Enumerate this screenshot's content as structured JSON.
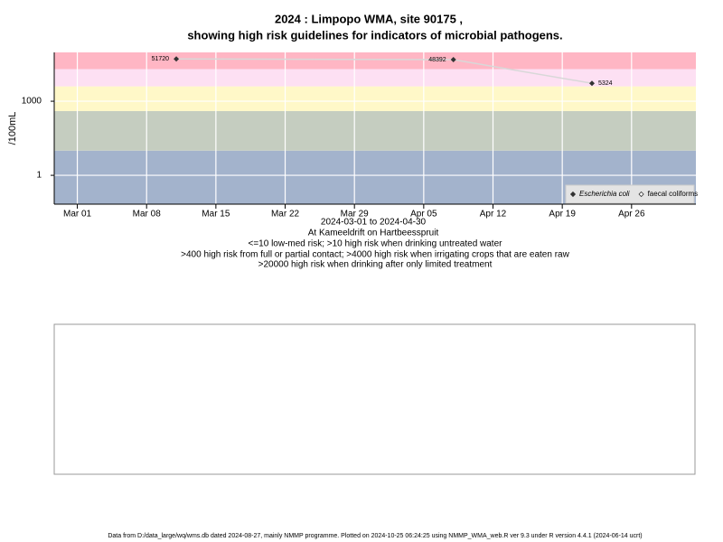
{
  "chart_data": {
    "type": "line",
    "title_lines": [
      "2024 : Limpopo WMA, site 90175 ,",
      "showing high risk guidelines for indicators of microbial pathogens."
    ],
    "y_label": "/100mL",
    "x_label": "2024-03-01 to 2024-04-30",
    "notes": [
      "At Kameeldrift on Hartbeesspruit",
      "<=10 low-med risk; >10 high risk when drinking untreated water",
      ">400 high risk from full or partial contact; >4000 high risk when irrigating crops that are eaten raw",
      ">20000 high risk when drinking after only limited treatment"
    ],
    "x": [
      "2024-03-11",
      "2024-04-08",
      "2024-04-22"
    ],
    "series": [
      {
        "name": "Escherichia coli",
        "color": "#333333",
        "line_color": "#d8d8d8",
        "values": [
          51720,
          48392,
          5324
        ]
      },
      {
        "name": "faecal coliforms",
        "color": "#333333",
        "line_color": "#d8d8d8",
        "values": [
          null,
          null,
          null
        ]
      }
    ],
    "xlim": [
      "2024-02-27T16:00",
      "2024-05-02T12:00"
    ],
    "xticks": [
      {
        "value": "2024-03-01",
        "label": "Mar 01"
      },
      {
        "value": "2024-03-08",
        "label": "Mar 08"
      },
      {
        "value": "2024-03-15",
        "label": "Mar 15"
      },
      {
        "value": "2024-03-22",
        "label": "Mar 22"
      },
      {
        "value": "2024-03-29",
        "label": "Mar 29"
      },
      {
        "value": "2024-04-05",
        "label": "Apr 05"
      },
      {
        "value": "2024-04-12",
        "label": "Apr 12"
      },
      {
        "value": "2024-04-19",
        "label": "Apr 19"
      },
      {
        "value": "2024-04-26",
        "label": "Apr 26"
      }
    ],
    "ylim": [
      0.068,
      95000
    ],
    "yticks": [
      1,
      1000
    ],
    "log_y": true,
    "grid": true,
    "band_thresholds": [
      10,
      400,
      4000,
      20000
    ],
    "band_colors": [
      "#a3b3cc",
      "#c5cdc0",
      "#fff8c8",
      "#fde0f3",
      "#ffb6c4"
    ],
    "legend": "bottom-right",
    "footer": "Data from D:/data_large/wq/wms.db dated 2024-08-27, mainly NMMP programme. Plotted on 2024-10-25 06:24:25 using NMMP_WMA_web.R ver 9.3 under R version 4.4.1 (2024-06-14 ucrt)"
  }
}
